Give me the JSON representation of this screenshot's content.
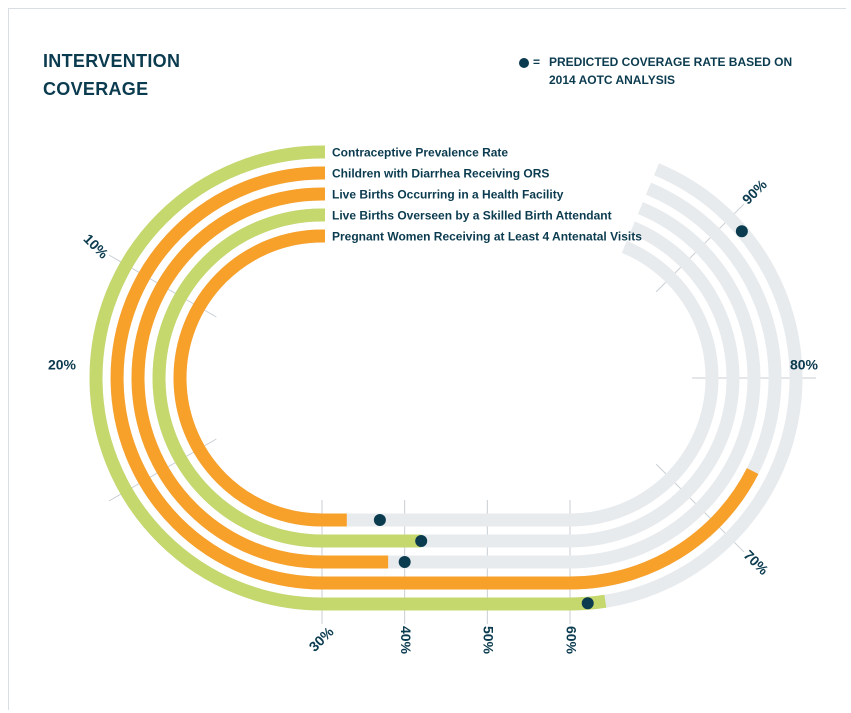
{
  "title_line1": "INTERVENTION",
  "title_line2": "COVERAGE",
  "legend": {
    "symbol": "=",
    "text_line1": "PREDICTED COVERAGE RATE BASED ON",
    "text_line2": "2014 AOTC ANALYSIS"
  },
  "colors": {
    "green": "#c5d86d",
    "orange": "#f7a12b",
    "track": "#e8ebee",
    "tick": "#c8ced3",
    "dot": "#0b3b4f",
    "text": "#0b3b4f"
  },
  "chart_data": {
    "type": "radial-track",
    "title": "INTERVENTION COVERAGE",
    "ticks": [
      "10%",
      "20%",
      "30%",
      "40%",
      "50%",
      "60%",
      "70%",
      "80%",
      "90%"
    ],
    "series": [
      {
        "name": "Contraceptive Prevalence Rate",
        "color": "green",
        "value": 62,
        "predicted": 61
      },
      {
        "name": "Children with Diarrhea Receiving ORS",
        "color": "orange",
        "value": 74,
        "predicted": null
      },
      {
        "name": "Live Births Occurring in a Health Facility",
        "color": "orange",
        "value": 38,
        "predicted": 40
      },
      {
        "name": "Live Births Overseen by a Skilled Birth Attendant",
        "color": "green",
        "value": 42,
        "predicted": 42
      },
      {
        "name": "Pregnant Women Receiving at Least 4 Antenatal Visits",
        "color": "orange",
        "value": 33,
        "predicted": 37
      }
    ],
    "extra_predicted": [
      {
        "series_index": 0,
        "predicted": 89
      }
    ]
  }
}
